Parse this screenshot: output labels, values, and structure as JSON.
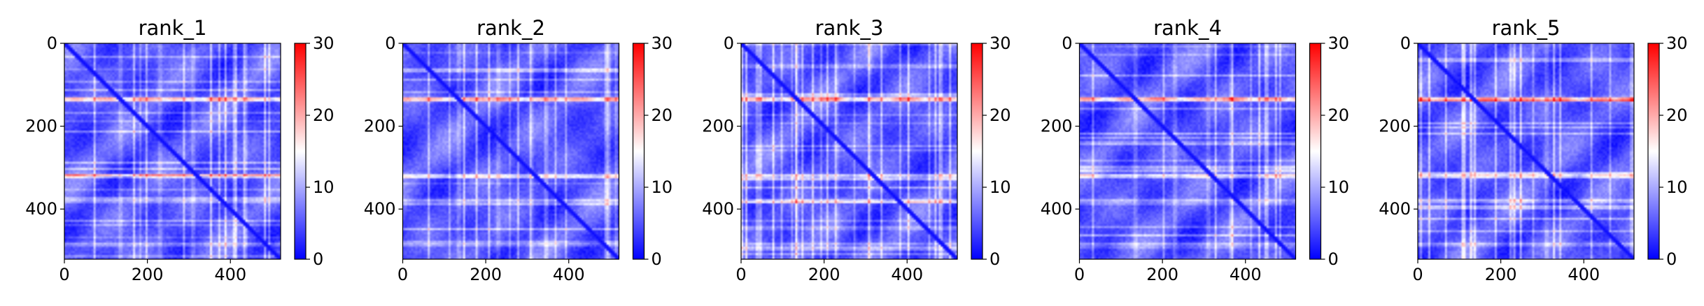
{
  "chart_data": [
    {
      "type": "heatmap",
      "title": "rank_1",
      "x_ticks": [
        "0",
        "200",
        "400"
      ],
      "y_ticks": [
        "0",
        "200",
        "400"
      ],
      "colorbar_ticks": [
        "0",
        "10",
        "20",
        "30"
      ],
      "xlim": [
        0,
        521
      ],
      "ylim": [
        521,
        0
      ],
      "color_range": [
        0,
        30
      ],
      "colormap": "bwr",
      "hot_bands": [
        {
          "row": 135,
          "level": 24
        },
        {
          "row": 320,
          "level": 17
        },
        {
          "row": 380,
          "level": 12
        },
        {
          "row": 485,
          "level": 11
        }
      ],
      "hot_columns": [
        135,
        230,
        310
      ]
    },
    {
      "type": "heatmap",
      "title": "rank_2",
      "x_ticks": [
        "0",
        "200",
        "400"
      ],
      "y_ticks": [
        "0",
        "200",
        "400"
      ],
      "colorbar_ticks": [
        "0",
        "10",
        "20",
        "30"
      ],
      "xlim": [
        0,
        521
      ],
      "ylim": [
        521,
        0
      ],
      "color_range": [
        0,
        30
      ],
      "colormap": "bwr",
      "hot_bands": [
        {
          "row": 135,
          "level": 25
        },
        {
          "row": 320,
          "level": 16
        },
        {
          "row": 380,
          "level": 12
        },
        {
          "row": 485,
          "level": 11
        }
      ],
      "hot_columns": [
        135,
        230,
        310
      ]
    },
    {
      "type": "heatmap",
      "title": "rank_3",
      "x_ticks": [
        "0",
        "200",
        "400"
      ],
      "y_ticks": [
        "0",
        "200",
        "400"
      ],
      "colorbar_ticks": [
        "0",
        "10",
        "20",
        "30"
      ],
      "xlim": [
        0,
        521
      ],
      "ylim": [
        521,
        0
      ],
      "color_range": [
        0,
        30
      ],
      "colormap": "bwr",
      "hot_bands": [
        {
          "row": 135,
          "level": 25
        },
        {
          "row": 320,
          "level": 16
        },
        {
          "row": 380,
          "level": 14
        },
        {
          "row": 485,
          "level": 11
        }
      ],
      "hot_columns": [
        135,
        230,
        310
      ]
    },
    {
      "type": "heatmap",
      "title": "rank_4",
      "x_ticks": [
        "0",
        "200",
        "400"
      ],
      "y_ticks": [
        "0",
        "200",
        "400"
      ],
      "colorbar_ticks": [
        "0",
        "10",
        "20",
        "30"
      ],
      "xlim": [
        0,
        521
      ],
      "ylim": [
        521,
        0
      ],
      "color_range": [
        0,
        30
      ],
      "colormap": "bwr",
      "hot_bands": [
        {
          "row": 135,
          "level": 26
        },
        {
          "row": 320,
          "level": 17
        },
        {
          "row": 380,
          "level": 12
        },
        {
          "row": 485,
          "level": 11
        }
      ],
      "hot_columns": [
        135,
        230,
        310
      ]
    },
    {
      "type": "heatmap",
      "title": "rank_5",
      "x_ticks": [
        "0",
        "200",
        "400"
      ],
      "y_ticks": [
        "0",
        "200",
        "400"
      ],
      "colorbar_ticks": [
        "0",
        "10",
        "20",
        "30"
      ],
      "xlim": [
        0,
        521
      ],
      "ylim": [
        521,
        0
      ],
      "color_range": [
        0,
        30
      ],
      "colormap": "bwr",
      "hot_bands": [
        {
          "row": 135,
          "level": 25
        },
        {
          "row": 320,
          "level": 19
        },
        {
          "row": 380,
          "level": 13
        },
        {
          "row": 485,
          "level": 11
        }
      ],
      "hot_columns": [
        135,
        230,
        310
      ]
    }
  ]
}
